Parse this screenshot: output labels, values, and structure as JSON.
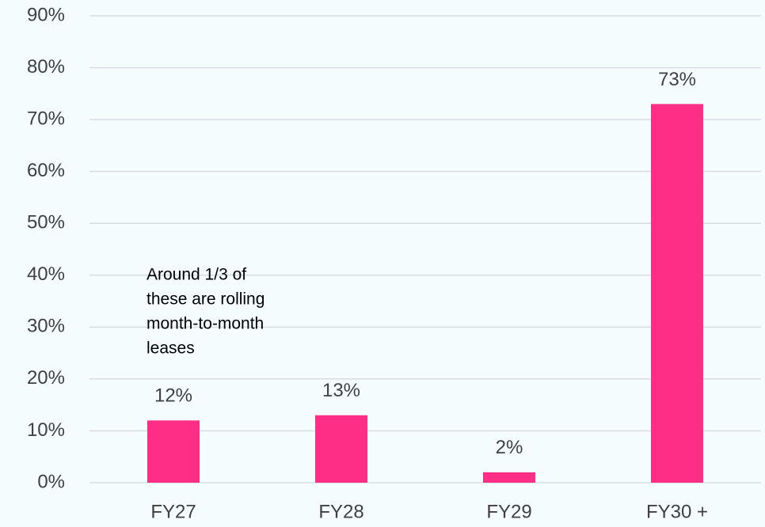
{
  "chart_data": {
    "type": "bar",
    "categories": [
      "FY27",
      "FY28",
      "FY29",
      "FY30 +"
    ],
    "values": [
      12,
      13,
      2,
      73
    ],
    "value_labels": [
      "12%",
      "13%",
      "2%",
      "73%"
    ],
    "color": "#fe2e86",
    "ylim": [
      0,
      90
    ],
    "yticks": [
      {
        "value": 0,
        "label": "0%"
      },
      {
        "value": 10,
        "label": "10%"
      },
      {
        "value": 20,
        "label": "20%"
      },
      {
        "value": 30,
        "label": "30%"
      },
      {
        "value": 40,
        "label": "40%"
      },
      {
        "value": 50,
        "label": "50%"
      },
      {
        "value": 60,
        "label": "60%"
      },
      {
        "value": 70,
        "label": "70%"
      },
      {
        "value": 80,
        "label": "80%"
      },
      {
        "value": 90,
        "label": "90%"
      }
    ],
    "grid": true,
    "annotation": [
      "Around 1/3 of",
      "these are rolling",
      "month-to-month",
      "leases"
    ]
  }
}
